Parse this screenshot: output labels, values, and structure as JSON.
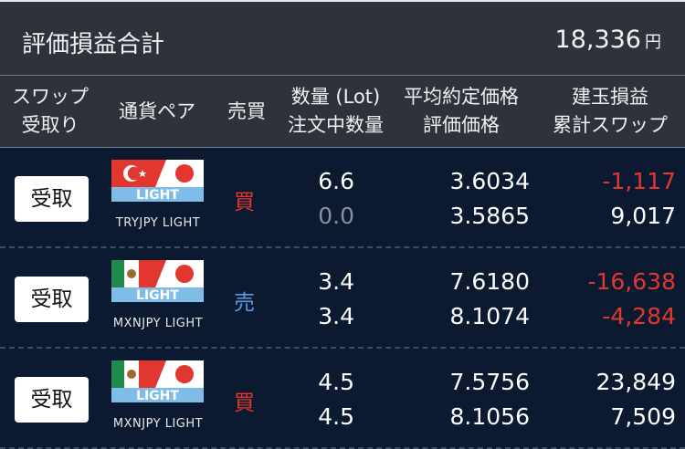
{
  "summary": {
    "label": "評価損益合計",
    "value": "18,336",
    "unit": "円"
  },
  "headers": {
    "swap_1": "スワップ",
    "swap_2": "受取り",
    "pair": "通貨ペア",
    "side": "売買",
    "qty_1": "数量 (Lot)",
    "qty_2": "注文中数量",
    "price_1": "平均約定価格",
    "price_2": "評価価格",
    "pl_1": "建玉損益",
    "pl_2": "累計スワップ"
  },
  "colors": {
    "buy": "#e2372f",
    "sell": "#5b9be0",
    "negative": "#e2372f",
    "positive": "#ffffff",
    "muted": "#8a8f98"
  },
  "rows": [
    {
      "button": "受取",
      "flag_label": "LIGHT",
      "pair": "TRYJPY LIGHT",
      "flag": "turkey-japan",
      "side": "買",
      "side_type": "buy",
      "qty": "6.6",
      "pending": "0.0",
      "avg_price": "3.6034",
      "eval_price": "3.5865",
      "pl": "-1,117",
      "swap": "9,017"
    },
    {
      "button": "受取",
      "flag_label": "LIGHT",
      "pair": "MXNJPY LIGHT",
      "flag": "mexico-japan",
      "side": "売",
      "side_type": "sell",
      "qty": "3.4",
      "pending": "3.4",
      "avg_price": "7.6180",
      "eval_price": "8.1074",
      "pl": "-16,638",
      "swap": "-4,284"
    },
    {
      "button": "受取",
      "flag_label": "LIGHT",
      "pair": "MXNJPY LIGHT",
      "flag": "mexico-japan",
      "side": "買",
      "side_type": "buy",
      "qty": "4.5",
      "pending": "4.5",
      "avg_price": "7.5756",
      "eval_price": "8.1056",
      "pl": "23,849",
      "swap": "7,509"
    }
  ]
}
